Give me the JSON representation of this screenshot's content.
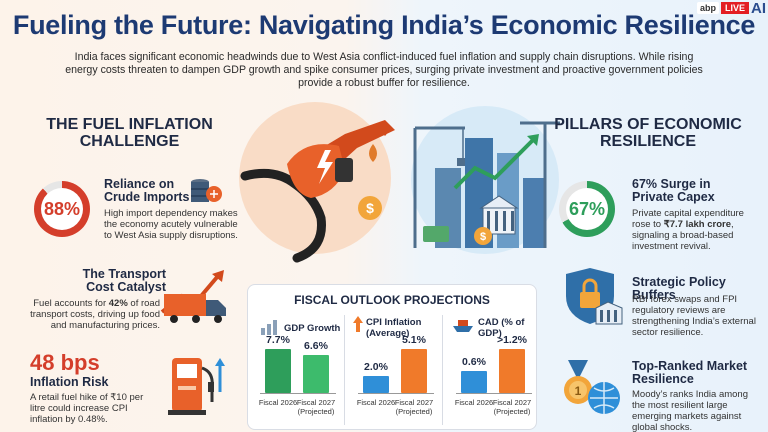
{
  "header": {
    "title": "Fueling the Future: Navigating India’s Economic Resilience",
    "intro": "India faces significant economic headwinds due to West Asia conflict-induced fuel inflation and supply chain disruptions. While rising energy costs threaten to dampen GDP growth and spike consumer prices, surging private investment and proactive government policies provide a robust buffer for resilience.",
    "brand": {
      "abp": "abp",
      "live": "LIVE",
      "ai": "AI"
    }
  },
  "left": {
    "heading": "THE FUEL INFLATION CHALLENGE",
    "items": [
      {
        "stat": "88%",
        "stat_value": 88,
        "title": "Reliance on Crude Imports",
        "text": "High import dependency makes the economy acutely vulnerable to West Asia supply disruptions.",
        "icon": "oil-barrel-icon"
      },
      {
        "title": "The Transport Cost Catalyst",
        "text_pre": "Fuel accounts for ",
        "text_bold": "42%",
        "text_post": " of road transport costs, driving up food and manufacturing prices.",
        "icon": "truck-icon"
      },
      {
        "stat": "48 bps",
        "title": "Inflation Risk",
        "text": "A retail fuel hike of ₹10 per litre could increase CPI inflation by 0.48%.",
        "icon": "fuel-pump-icon"
      }
    ]
  },
  "right": {
    "heading": "PILLARS OF ECONOMIC RESILIENCE",
    "items": [
      {
        "stat": "67%",
        "stat_value": 67,
        "title": "67% Surge in Private Capex",
        "text_pre": "Private capital expenditure rose to ",
        "text_bold": "₹7.7 lakh crore",
        "text_post": ", signaling a broad-based investment revival.",
        "icon": "growth-icon"
      },
      {
        "title": "Strategic Policy Buffers",
        "text": "RBI forex swaps and FPI regulatory reviews are strengthening India’s external sector resilience.",
        "icon": "shield-lock-icon"
      },
      {
        "title": "Top-Ranked Market Resilience",
        "text": "Moody’s ranks India among the most resilient large emerging markets against global shocks.",
        "icon": "medal-globe-icon"
      }
    ]
  },
  "fiscal": {
    "title": "FISCAL OUTLOOK PROJECTIONS",
    "metrics": [
      {
        "label": "GDP Growth",
        "icon": "bar-growth-icon",
        "bars": [
          {
            "cap1": "Fiscal",
            "cap2": "2026",
            "label": "7.7%",
            "value": 7.7,
            "color": "#2e9e5b"
          },
          {
            "cap1": "Fiscal 2027",
            "cap2": "(Projected)",
            "label": "6.6%",
            "value": 6.6,
            "color": "#3dbb6c"
          }
        ]
      },
      {
        "label": "CPI Inflation (Average)",
        "icon": "up-arrow-icon",
        "bars": [
          {
            "cap1": "Fiscal",
            "cap2": "2026",
            "label": "2.0%",
            "value": 2.0,
            "color": "#2f8fd8"
          },
          {
            "cap1": "Fiscal 2027",
            "cap2": "(Projected)",
            "label": "5.1%",
            "value": 5.1,
            "color": "#f07a2a"
          }
        ]
      },
      {
        "label": "CAD (% of GDP)",
        "icon": "ship-icon",
        "bars": [
          {
            "cap1": "Fiscal",
            "cap2": "2026",
            "label": "0.6%",
            "value": 0.6,
            "color": "#2f8fd8"
          },
          {
            "cap1": "Fiscal 2027",
            "cap2": "(Projected)",
            "label": ">1.2%",
            "value": 1.2,
            "color": "#f07a2a"
          }
        ]
      }
    ]
  }
}
